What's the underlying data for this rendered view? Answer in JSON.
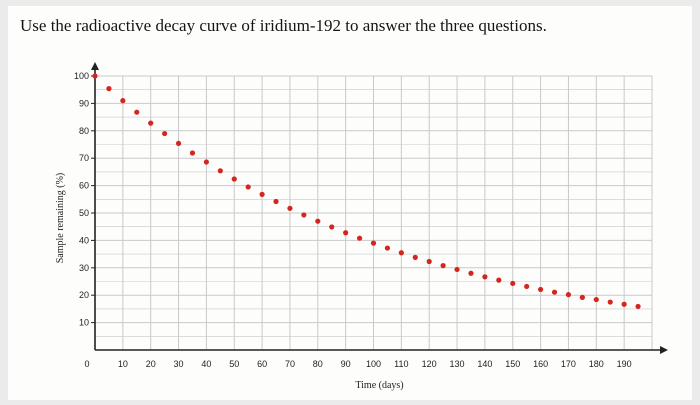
{
  "question": "Use the radioactive decay curve of iridium-192 to answer the three questions.",
  "colors": {
    "points": "#d4261f",
    "grid": "#c9c9c9",
    "axis": "#222222",
    "background": "#fdfdfc"
  },
  "chart_data": {
    "type": "scatter",
    "title": "",
    "xlabel": "Time (days)",
    "ylabel": "Sample remaining (%)",
    "xlim": [
      0,
      200
    ],
    "ylim": [
      0,
      100
    ],
    "x_ticks": [
      10,
      20,
      30,
      40,
      50,
      60,
      70,
      80,
      90,
      100,
      110,
      120,
      130,
      140,
      150,
      160,
      170,
      180,
      190
    ],
    "y_ticks": [
      10,
      20,
      30,
      40,
      50,
      60,
      70,
      80,
      90,
      100
    ],
    "origin_label": "0",
    "grid": true,
    "series": [
      {
        "x": [
          0,
          5,
          10,
          15,
          20,
          25,
          30,
          35,
          40,
          45,
          50,
          55,
          60,
          65,
          70,
          75,
          80,
          85,
          90,
          95,
          100,
          105,
          110,
          115,
          120,
          125,
          130,
          135,
          140,
          145,
          150,
          155,
          160,
          165,
          170,
          175,
          180,
          185,
          190,
          195
        ],
        "y": [
          100,
          95.4,
          91.0,
          86.8,
          82.8,
          79.0,
          75.4,
          71.9,
          68.6,
          65.4,
          62.4,
          59.5,
          56.8,
          54.2,
          51.7,
          49.3,
          47.0,
          44.9,
          42.8,
          40.8,
          39.0,
          37.2,
          35.5,
          33.8,
          32.3,
          30.8,
          29.4,
          28.0,
          26.7,
          25.5,
          24.3,
          23.2,
          22.1,
          21.1,
          20.2,
          19.2,
          18.4,
          17.5,
          16.7,
          15.9
        ]
      }
    ]
  }
}
